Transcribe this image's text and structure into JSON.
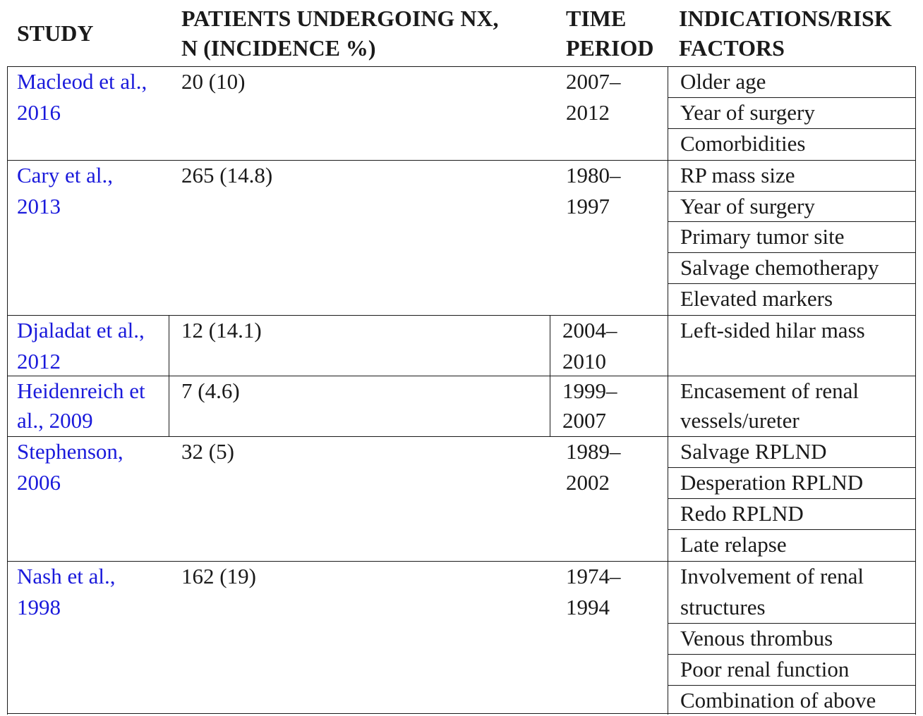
{
  "headers": {
    "study": "STUDY",
    "patients_line1": "PATIENTS UNDERGOING NX,",
    "patients_line2": "N (INCIDENCE %)",
    "time_line1": "TIME",
    "time_line2": "PERIOD",
    "indications_line1": "INDICATIONS/RISK",
    "indications_line2": "FACTORS"
  },
  "rows": [
    {
      "study_line1": "Macleod et al.,",
      "study_line2": "2016",
      "patients": "20 (10)",
      "time_line1": "2007–",
      "time_line2": "2012",
      "factors": [
        "Older age",
        "Year of surgery",
        "Comorbidities"
      ]
    },
    {
      "study_line1": "Cary et al.,",
      "study_line2": "2013",
      "patients": "265 (14.8)",
      "time_line1": "1980–",
      "time_line2": "1997",
      "factors": [
        "RP mass size",
        "Year of surgery",
        "Primary tumor site",
        "Salvage chemotherapy",
        "Elevated markers"
      ]
    },
    {
      "study_line1": "Djaladat et al.,",
      "study_line2": "2012",
      "patients": "12 (14.1)",
      "time_line1": "2004–",
      "time_line2": "2010",
      "factors": [
        "Left-sided hilar mass"
      ]
    },
    {
      "study_line1": "Heidenreich et",
      "study_line2": "al., 2009",
      "patients": "7 (4.6)",
      "time_line1": "1999–",
      "time_line2": "2007",
      "factors": [
        "Encasement of renal",
        "vessels/ureter"
      ]
    },
    {
      "study_line1": "Stephenson,",
      "study_line2": "2006",
      "patients": "32 (5)",
      "time_line1": "1989–",
      "time_line2": "2002",
      "factors": [
        "Salvage RPLND",
        "Desperation RPLND",
        "Redo RPLND",
        "Late relapse"
      ]
    },
    {
      "study_line1": "Nash et al.,",
      "study_line2": "1998",
      "patients": "162 (19)",
      "time_line1": "1974–",
      "time_line2": "1994",
      "factors": [
        "Involvement of renal",
        "structures",
        "Venous thrombus",
        "Poor renal function",
        "Combination of above"
      ]
    }
  ]
}
